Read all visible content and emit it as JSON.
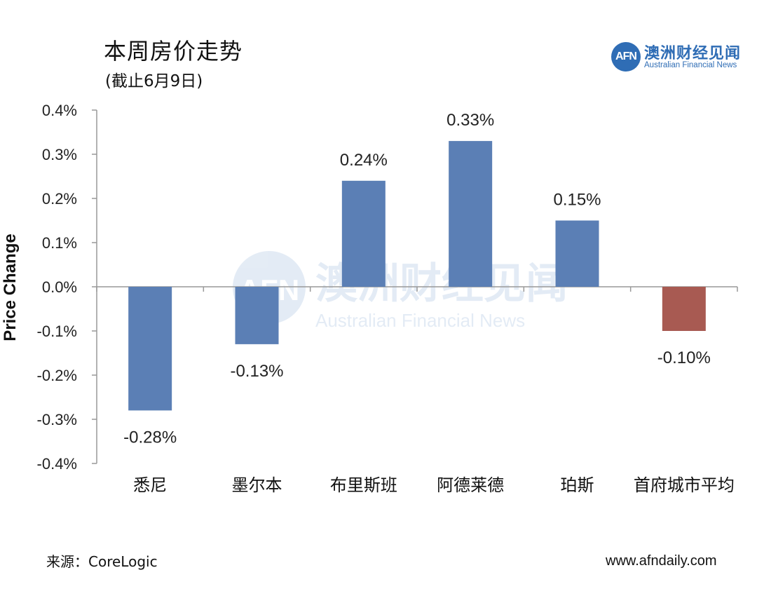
{
  "title": "本周房价走势",
  "subtitle": "(截止6月9日)",
  "logo": {
    "badge_text": "AFN",
    "name_cn": "澳洲财经见闻",
    "name_en": "Australian Financial News",
    "color": "#2f6db5"
  },
  "watermark": {
    "badge_text": "AFN",
    "name_cn": "澳洲财经见闻",
    "name_en": "Australian Financial News"
  },
  "source": "来源：CoreLogic",
  "website": "www.afndaily.com",
  "colors": {
    "positive_bar": "#5b7fb5",
    "negative_bar": "#5b7fb5",
    "average_bar": "#a85a52",
    "axis": "#999999"
  },
  "chart_data": {
    "type": "bar",
    "title": "本周房价走势",
    "subtitle": "(截止6月9日)",
    "xlabel": "",
    "ylabel": "Price Change",
    "ylim": [
      -0.4,
      0.4
    ],
    "yticks": [
      "-0.4%",
      "-0.3%",
      "-0.2%",
      "-0.1%",
      "0.0%",
      "0.1%",
      "0.2%",
      "0.3%",
      "0.4%"
    ],
    "ytick_values": [
      -0.4,
      -0.3,
      -0.2,
      -0.1,
      0.0,
      0.1,
      0.2,
      0.3,
      0.4
    ],
    "grid": false,
    "categories": [
      "悉尼",
      "墨尔本",
      "布里斯班",
      "阿德莱德",
      "珀斯",
      "首府城市平均"
    ],
    "values": [
      -0.28,
      -0.13,
      0.24,
      0.33,
      0.15,
      -0.1
    ],
    "data_labels": [
      "-0.28%",
      "-0.13%",
      "0.24%",
      "0.33%",
      "0.15%",
      "-0.10%"
    ],
    "bar_colors": [
      "#5b7fb5",
      "#5b7fb5",
      "#5b7fb5",
      "#5b7fb5",
      "#5b7fb5",
      "#a85a52"
    ]
  }
}
